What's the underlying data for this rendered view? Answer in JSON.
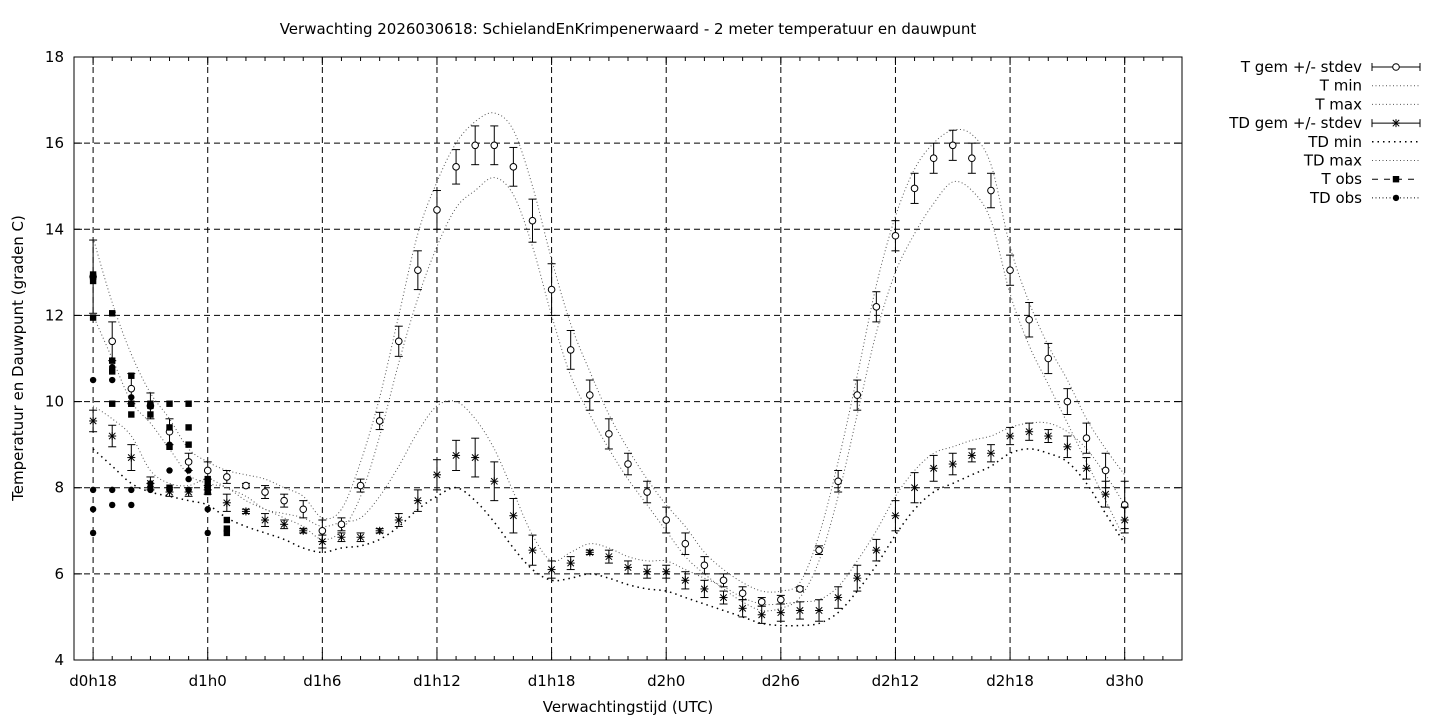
{
  "chart_data": {
    "type": "line",
    "title": "Verwachting 2026030618: SchielandEnKrimpenerwaard - 2 meter temperatuur en dauwpunt",
    "xlabel": "Verwachtingstijd (UTC)",
    "ylabel": "Temperatuur en Dauwpunt (graden C)",
    "xlim": [
      17,
      75
    ],
    "ylim": [
      4,
      18
    ],
    "x_ticks": [
      {
        "x": 18,
        "label": "d0h18"
      },
      {
        "x": 24,
        "label": "d1h0"
      },
      {
        "x": 30,
        "label": "d1h6"
      },
      {
        "x": 36,
        "label": "d1h12"
      },
      {
        "x": 42,
        "label": "d1h18"
      },
      {
        "x": 48,
        "label": "d2h0"
      },
      {
        "x": 54,
        "label": "d2h6"
      },
      {
        "x": 60,
        "label": "d2h12"
      },
      {
        "x": 66,
        "label": "d2h18"
      },
      {
        "x": 72,
        "label": "d3h0"
      }
    ],
    "y_ticks": [
      4,
      6,
      8,
      10,
      12,
      14,
      16,
      18
    ],
    "grid": true,
    "legend_position": "outside-right",
    "legend": [
      {
        "label": "T gem +/- stdev",
        "style": "errorbar-circle"
      },
      {
        "label": "T min",
        "style": "dotted"
      },
      {
        "label": "T max",
        "style": "dotted"
      },
      {
        "label": "TD gem +/- stdev",
        "style": "errorbar-star"
      },
      {
        "label": "TD min",
        "style": "dotted-sparse"
      },
      {
        "label": "TD max",
        "style": "dotted"
      },
      {
        "label": "T obs",
        "style": "square-dashed"
      },
      {
        "label": "TD obs",
        "style": "dot-dotted"
      }
    ],
    "series": [
      {
        "name": "T gem +/- stdev",
        "x": [
          18,
          19,
          20,
          21,
          22,
          23,
          24,
          25,
          26,
          27,
          28,
          29,
          30,
          31,
          32,
          33,
          34,
          35,
          36,
          37,
          38,
          39,
          40,
          41,
          42,
          43,
          44,
          45,
          46,
          47,
          48,
          49,
          50,
          51,
          52,
          53,
          54,
          55,
          56,
          57,
          58,
          59,
          60,
          61,
          62,
          63,
          64,
          65,
          66,
          67,
          68,
          69,
          70,
          71,
          72
        ],
        "y": [
          12.9,
          11.4,
          10.3,
          9.9,
          9.3,
          8.6,
          8.4,
          8.25,
          8.05,
          7.9,
          7.7,
          7.5,
          7.0,
          7.15,
          8.05,
          9.55,
          11.4,
          13.05,
          14.45,
          15.45,
          15.95,
          15.95,
          15.45,
          14.2,
          12.6,
          11.2,
          10.15,
          9.25,
          8.55,
          7.9,
          7.25,
          6.7,
          6.2,
          5.85,
          5.55,
          5.35,
          5.4,
          5.65,
          6.55,
          8.15,
          10.15,
          12.2,
          13.85,
          14.95,
          15.65,
          15.95,
          15.65,
          14.9,
          13.05,
          11.9,
          11.0,
          10.0,
          9.15,
          8.4,
          7.6
        ],
        "stdev": [
          0.85,
          0.45,
          0.35,
          0.3,
          0.3,
          0.2,
          0.2,
          0.15,
          0.05,
          0.15,
          0.15,
          0.2,
          0.25,
          0.15,
          0.15,
          0.2,
          0.35,
          0.45,
          0.45,
          0.4,
          0.45,
          0.45,
          0.45,
          0.5,
          0.6,
          0.45,
          0.35,
          0.35,
          0.25,
          0.25,
          0.3,
          0.25,
          0.2,
          0.15,
          0.15,
          0.1,
          0.1,
          0.05,
          0.1,
          0.25,
          0.35,
          0.35,
          0.35,
          0.35,
          0.35,
          0.35,
          0.35,
          0.4,
          0.35,
          0.4,
          0.35,
          0.3,
          0.35,
          0.4,
          0.55
        ]
      },
      {
        "name": "T min",
        "x": [
          18,
          19,
          20,
          21,
          22,
          23,
          24,
          25,
          26,
          27,
          28,
          29,
          30,
          31,
          32,
          33,
          34,
          35,
          36,
          37,
          38,
          39,
          40,
          41,
          42,
          43,
          44,
          45,
          46,
          47,
          48,
          49,
          50,
          51,
          52,
          53,
          54,
          55,
          56,
          57,
          58,
          59,
          60,
          61,
          62,
          63,
          64,
          65,
          66,
          67,
          68,
          69,
          70,
          71,
          72
        ],
        "y": [
          12.0,
          11.0,
          10.0,
          9.5,
          8.9,
          8.3,
          8.1,
          8.0,
          7.7,
          7.5,
          7.3,
          7.1,
          6.8,
          7.0,
          7.8,
          9.2,
          10.9,
          12.4,
          13.6,
          14.5,
          14.9,
          15.2,
          14.8,
          13.6,
          12.0,
          10.6,
          9.7,
          8.9,
          8.2,
          7.6,
          7.0,
          6.4,
          6.0,
          5.65,
          5.35,
          5.15,
          5.2,
          5.45,
          6.3,
          7.8,
          9.7,
          11.6,
          13.0,
          13.9,
          14.6,
          15.1,
          14.9,
          14.2,
          12.5,
          11.3,
          10.4,
          9.5,
          8.6,
          7.7,
          6.8
        ]
      },
      {
        "name": "T max",
        "x": [
          18,
          19,
          20,
          21,
          22,
          23,
          24,
          25,
          26,
          27,
          28,
          29,
          30,
          31,
          32,
          33,
          34,
          35,
          36,
          37,
          38,
          39,
          40,
          41,
          42,
          43,
          44,
          45,
          46,
          47,
          48,
          49,
          50,
          51,
          52,
          53,
          54,
          55,
          56,
          57,
          58,
          59,
          60,
          61,
          62,
          63,
          64,
          65,
          66,
          67,
          68,
          69,
          70,
          71,
          72
        ],
        "y": [
          13.8,
          12.3,
          11.1,
          10.2,
          9.6,
          8.9,
          8.6,
          8.4,
          8.3,
          8.2,
          8.0,
          7.8,
          7.3,
          7.5,
          8.6,
          10.1,
          12.0,
          13.9,
          15.1,
          16.0,
          16.5,
          16.7,
          16.3,
          15.0,
          13.3,
          11.8,
          10.7,
          9.7,
          8.9,
          8.2,
          7.6,
          7.1,
          6.5,
          6.1,
          5.8,
          5.6,
          5.6,
          5.8,
          6.9,
          8.6,
          10.6,
          12.7,
          14.3,
          15.4,
          16.0,
          16.3,
          16.2,
          15.5,
          13.6,
          12.3,
          11.3,
          10.5,
          9.6,
          8.9,
          8.3
        ]
      },
      {
        "name": "TD gem +/- stdev",
        "x": [
          18,
          19,
          20,
          21,
          22,
          23,
          24,
          25,
          26,
          27,
          28,
          29,
          30,
          31,
          32,
          33,
          34,
          35,
          36,
          37,
          38,
          39,
          40,
          41,
          42,
          43,
          44,
          45,
          46,
          47,
          48,
          49,
          50,
          51,
          52,
          53,
          54,
          55,
          56,
          57,
          58,
          59,
          60,
          61,
          62,
          63,
          64,
          65,
          66,
          67,
          68,
          69,
          70,
          71,
          72
        ],
        "y": [
          9.55,
          9.2,
          8.7,
          8.1,
          7.9,
          7.9,
          7.95,
          7.65,
          7.45,
          7.25,
          7.15,
          7.0,
          6.75,
          6.85,
          6.85,
          7.0,
          7.25,
          7.7,
          8.3,
          8.75,
          8.7,
          8.15,
          7.35,
          6.55,
          6.1,
          6.25,
          6.5,
          6.4,
          6.15,
          6.05,
          6.05,
          5.85,
          5.65,
          5.45,
          5.2,
          5.05,
          5.1,
          5.15,
          5.15,
          5.45,
          5.9,
          6.55,
          7.35,
          8.0,
          8.45,
          8.55,
          8.75,
          8.8,
          9.2,
          9.3,
          9.2,
          8.95,
          8.45,
          7.85,
          7.25
        ]
      },
      {
        "name": "TD min",
        "x": [
          18,
          19,
          20,
          21,
          22,
          23,
          24,
          25,
          26,
          27,
          28,
          29,
          30,
          31,
          32,
          33,
          34,
          35,
          36,
          37,
          38,
          39,
          40,
          41,
          42,
          43,
          44,
          45,
          46,
          47,
          48,
          49,
          50,
          51,
          52,
          53,
          54,
          55,
          56,
          57,
          58,
          59,
          60,
          61,
          62,
          63,
          64,
          65,
          66,
          67,
          68,
          69,
          70,
          71,
          72
        ],
        "y": [
          8.9,
          8.5,
          8.1,
          7.9,
          7.8,
          7.7,
          7.6,
          7.3,
          7.1,
          6.95,
          6.8,
          6.6,
          6.5,
          6.6,
          6.65,
          6.8,
          7.1,
          7.5,
          7.8,
          8.0,
          7.7,
          7.2,
          6.6,
          6.1,
          5.85,
          5.9,
          6.0,
          5.9,
          5.75,
          5.65,
          5.6,
          5.45,
          5.3,
          5.15,
          5.0,
          4.85,
          4.8,
          4.8,
          4.85,
          5.1,
          5.6,
          6.2,
          6.9,
          7.5,
          7.9,
          8.1,
          8.3,
          8.5,
          8.8,
          8.9,
          8.8,
          8.6,
          8.1,
          7.4,
          6.7
        ]
      },
      {
        "name": "TD max",
        "x": [
          18,
          19,
          20,
          21,
          22,
          23,
          24,
          25,
          26,
          27,
          28,
          29,
          30,
          31,
          32,
          33,
          34,
          35,
          36,
          37,
          38,
          39,
          40,
          41,
          42,
          43,
          44,
          45,
          46,
          47,
          48,
          49,
          50,
          51,
          52,
          53,
          54,
          55,
          56,
          57,
          58,
          59,
          60,
          61,
          62,
          63,
          64,
          65,
          66,
          67,
          68,
          69,
          70,
          71,
          72
        ],
        "y": [
          9.9,
          9.6,
          9.2,
          8.4,
          8.1,
          8.05,
          8.2,
          8.0,
          7.8,
          7.5,
          7.4,
          7.3,
          7.1,
          7.2,
          7.3,
          7.8,
          8.5,
          9.3,
          9.9,
          10.0,
          9.6,
          8.9,
          7.9,
          6.9,
          6.3,
          6.5,
          6.7,
          6.6,
          6.4,
          6.3,
          6.3,
          6.1,
          5.9,
          5.7,
          5.45,
          5.3,
          5.3,
          5.35,
          5.4,
          5.7,
          6.3,
          7.0,
          7.8,
          8.4,
          8.8,
          8.95,
          9.1,
          9.2,
          9.4,
          9.5,
          9.5,
          9.3,
          8.9,
          8.3,
          7.6
        ]
      },
      {
        "name": "T obs",
        "x": [
          18,
          18,
          18,
          18,
          19,
          19,
          19,
          19,
          20,
          20,
          20,
          20,
          21,
          21,
          21,
          22,
          22,
          22,
          22,
          23,
          23,
          23,
          24,
          24,
          24,
          24,
          25,
          25,
          25
        ],
        "y": [
          12.8,
          12.9,
          12.95,
          11.95,
          12.05,
          10.95,
          10.7,
          9.95,
          10.6,
          9.95,
          9.7,
          9.95,
          9.9,
          9.7,
          9.95,
          9.95,
          9.4,
          8.95,
          8.0,
          9.95,
          9.4,
          9.0,
          8.1,
          7.9,
          8.0,
          8.2,
          7.25,
          7.05,
          6.95
        ]
      },
      {
        "name": "TD obs",
        "x": [
          18,
          18,
          18,
          18,
          19,
          19,
          19,
          19,
          20,
          20,
          20,
          21,
          21,
          21,
          22,
          22,
          22,
          23,
          23,
          23,
          24,
          24,
          24,
          24
        ],
        "y": [
          10.5,
          7.95,
          7.5,
          6.95,
          10.8,
          10.5,
          7.95,
          7.6,
          10.1,
          7.95,
          7.6,
          8.0,
          8.1,
          7.95,
          9.0,
          8.4,
          7.95,
          8.4,
          8.2,
          7.95,
          7.95,
          8.0,
          7.5,
          6.95
        ]
      }
    ]
  }
}
